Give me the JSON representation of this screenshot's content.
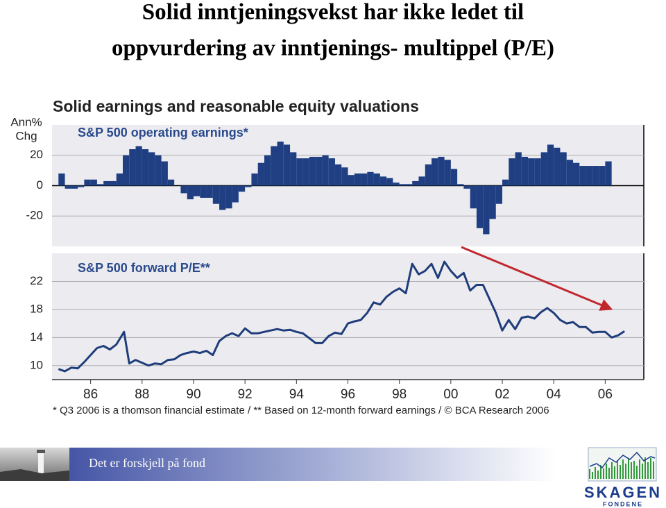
{
  "title_lines": [
    "Solid inntjeningsvekst har ikke ledet til",
    "oppvurdering av inntjenings- multippel (P/E)"
  ],
  "chart_heading": "Solid earnings and reasonable equity valuations",
  "footnote": "* Q3 2006 is a thomson financial estimate / ** Based on 12-month forward earnings / © BCA Research 2006",
  "chart_data": [
    {
      "type": "bar",
      "title": "S&P 500 operating earnings*",
      "y_label": [
        "Ann%",
        "Chg"
      ],
      "color": "#1f3f82",
      "xlim": [
        1984.5,
        2007.5
      ],
      "ylim": [
        -40,
        40
      ],
      "yticks": [
        -20,
        0,
        20
      ],
      "grid": true,
      "x": [
        1984.75,
        1985,
        1985.25,
        1985.5,
        1985.75,
        1986,
        1986.25,
        1986.5,
        1986.75,
        1987,
        1987.25,
        1987.5,
        1987.75,
        1988,
        1988.25,
        1988.5,
        1988.75,
        1989,
        1989.25,
        1989.5,
        1989.75,
        1990,
        1990.25,
        1990.5,
        1990.75,
        1991,
        1991.25,
        1991.5,
        1991.75,
        1992,
        1992.25,
        1992.5,
        1992.75,
        1993,
        1993.25,
        1993.5,
        1993.75,
        1994,
        1994.25,
        1994.5,
        1994.75,
        1995,
        1995.25,
        1995.5,
        1995.75,
        1996,
        1996.25,
        1996.5,
        1996.75,
        1997,
        1997.25,
        1997.5,
        1997.75,
        1998,
        1998.25,
        1998.5,
        1998.75,
        1999,
        1999.25,
        1999.5,
        1999.75,
        2000,
        2000.25,
        2000.5,
        2000.75,
        2001,
        2001.25,
        2001.5,
        2001.75,
        2002,
        2002.25,
        2002.5,
        2002.75,
        2003,
        2003.25,
        2003.5,
        2003.75,
        2004,
        2004.25,
        2004.5,
        2004.75,
        2005,
        2005.25,
        2005.5,
        2005.75,
        2006
      ],
      "values": [
        8,
        -2,
        -2,
        -1,
        4,
        4,
        1,
        3,
        3,
        8,
        20,
        24,
        26,
        24,
        22,
        20,
        16,
        4,
        0,
        -5,
        -9,
        -7,
        -8,
        -8,
        -12,
        -16,
        -15,
        -11,
        -4,
        -1,
        8,
        15,
        20,
        26,
        29,
        27,
        22,
        18,
        18,
        19,
        19,
        20,
        18,
        14,
        12,
        7,
        8,
        8,
        9,
        8,
        6,
        5,
        2,
        1,
        1,
        3,
        6,
        14,
        18,
        19,
        17,
        11,
        1,
        -2,
        -15,
        -28,
        -32,
        -22,
        -12,
        4,
        18,
        22,
        19,
        18,
        18,
        22,
        27,
        25,
        22,
        17,
        15,
        13,
        13,
        13,
        13,
        16
      ]
    },
    {
      "type": "line",
      "title": "S&P 500 forward P/E**",
      "color": "#1f3d7a",
      "xlim": [
        1984.5,
        2007.5
      ],
      "xticks": [
        {
          "value": 1986,
          "label": "86"
        },
        {
          "value": 1988,
          "label": "88"
        },
        {
          "value": 1990,
          "label": "90"
        },
        {
          "value": 1992,
          "label": "92"
        },
        {
          "value": 1994,
          "label": "94"
        },
        {
          "value": 1996,
          "label": "96"
        },
        {
          "value": 1998,
          "label": "98"
        },
        {
          "value": 2000,
          "label": "00"
        },
        {
          "value": 2002,
          "label": "02"
        },
        {
          "value": 2004,
          "label": "04"
        },
        {
          "value": 2006,
          "label": "06"
        }
      ],
      "ylim": [
        8,
        26
      ],
      "yticks": [
        10,
        14,
        18,
        22
      ],
      "grid": true,
      "x": [
        1984.75,
        1985,
        1985.25,
        1985.5,
        1985.75,
        1986,
        1986.25,
        1986.5,
        1986.75,
        1987,
        1987.3,
        1987.5,
        1987.75,
        1988,
        1988.25,
        1988.5,
        1988.75,
        1989,
        1989.25,
        1989.5,
        1989.75,
        1990,
        1990.25,
        1990.5,
        1990.75,
        1991,
        1991.25,
        1991.5,
        1991.75,
        1992,
        1992.25,
        1992.5,
        1992.75,
        1993,
        1993.25,
        1993.5,
        1993.75,
        1994,
        1994.25,
        1994.5,
        1994.75,
        1995,
        1995.25,
        1995.5,
        1995.75,
        1996,
        1996.25,
        1996.5,
        1996.75,
        1997,
        1997.25,
        1997.5,
        1997.75,
        1998,
        1998.25,
        1998.5,
        1998.75,
        1999,
        1999.25,
        1999.5,
        1999.75,
        2000,
        2000.25,
        2000.5,
        2000.75,
        2001,
        2001.25,
        2001.5,
        2001.75,
        2002,
        2002.25,
        2002.5,
        2002.75,
        2003,
        2003.25,
        2003.5,
        2003.75,
        2004,
        2004.25,
        2004.5,
        2004.75,
        2005,
        2005.25,
        2005.5,
        2005.75,
        2006,
        2006.25,
        2006.5,
        2006.75
      ],
      "values": [
        9.5,
        9.2,
        9.7,
        9.6,
        10.5,
        11.5,
        12.5,
        12.8,
        12.3,
        13.0,
        14.8,
        10.3,
        10.8,
        10.4,
        10.0,
        10.3,
        10.2,
        10.8,
        10.9,
        11.5,
        11.8,
        12.0,
        11.8,
        12.1,
        11.5,
        13.5,
        14.2,
        14.6,
        14.2,
        15.3,
        14.6,
        14.6,
        14.8,
        15.0,
        15.2,
        15.0,
        15.1,
        14.8,
        14.6,
        13.9,
        13.2,
        13.2,
        14.2,
        14.7,
        14.5,
        16.0,
        16.3,
        16.5,
        17.5,
        19.0,
        18.7,
        19.8,
        20.5,
        21.0,
        20.3,
        24.5,
        23.0,
        23.5,
        24.5,
        22.5,
        24.8,
        23.5,
        22.5,
        23.2,
        20.7,
        21.5,
        21.5,
        19.5,
        17.5,
        15.0,
        16.5,
        15.2,
        16.8,
        17.0,
        16.7,
        17.6,
        18.2,
        17.5,
        16.5,
        16.0,
        16.2,
        15.5,
        15.5,
        14.7,
        14.8,
        14.8,
        14.0,
        14.3,
        14.9
      ]
    }
  ],
  "footer": {
    "tagline": "Det er forskjell på fond",
    "logo_name": "SKAGEN",
    "logo_sub": "FONDENE"
  }
}
